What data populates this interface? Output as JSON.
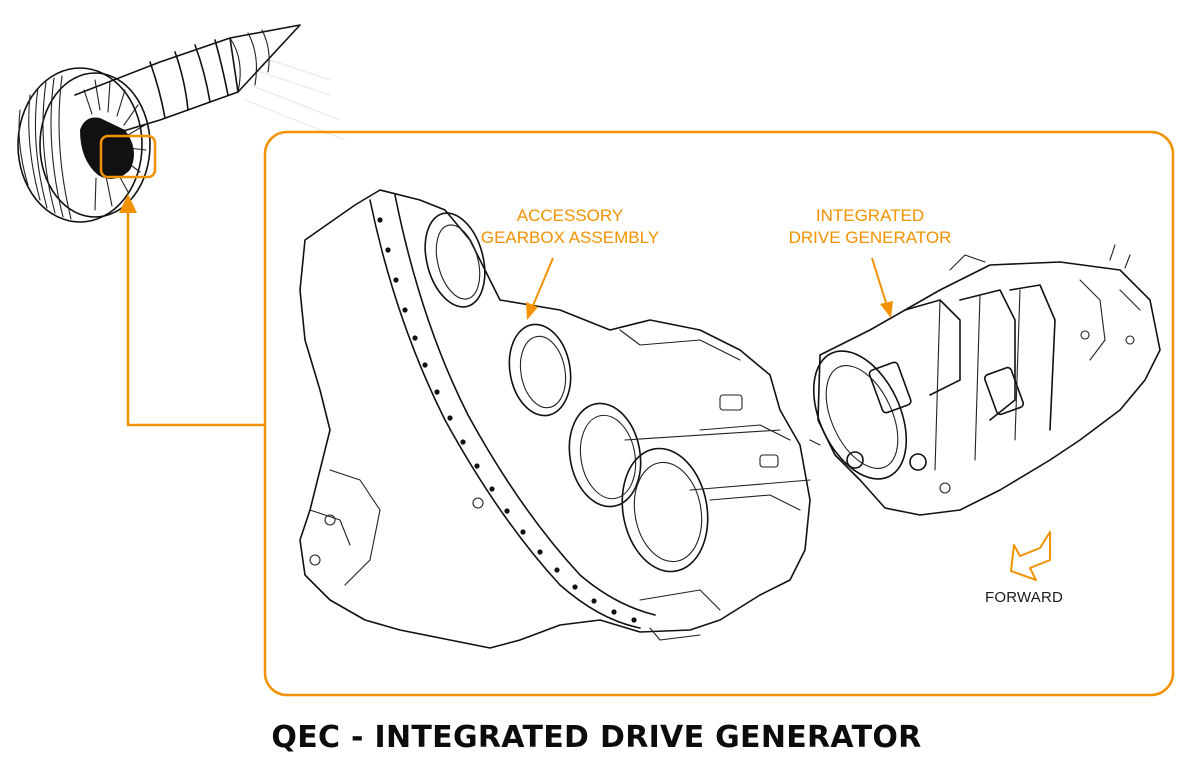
{
  "title": "QEC - INTEGRATED DRIVE GENERATOR",
  "callouts": {
    "accessory_gearbox": {
      "line1": "ACCESSORY",
      "line2": "GEARBOX ASSEMBLY"
    },
    "integrated_drive_generator": {
      "line1": "INTEGRATED",
      "line2": "DRIVE GENERATOR"
    },
    "forward": "FORWARD"
  },
  "colors": {
    "accent": "#f39200",
    "line_art": "#111111",
    "title": "#0c0c0c"
  },
  "icons": {
    "direction": "forward-arrow-icon"
  }
}
